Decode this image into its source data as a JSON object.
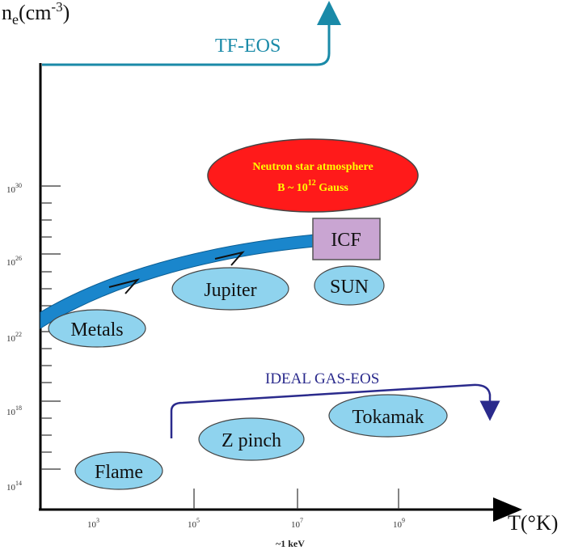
{
  "axes": {
    "y_label": {
      "base": "n",
      "sub": "e",
      "unit": "(cm",
      "exp": "-3",
      "close": ")"
    },
    "x_label": "T(°K)",
    "y_ticks": [
      {
        "base": "10",
        "exp": "30"
      },
      {
        "base": "10",
        "exp": "26"
      },
      {
        "base": "10",
        "exp": "22"
      },
      {
        "base": "10",
        "exp": "18"
      },
      {
        "base": "10",
        "exp": "14"
      }
    ],
    "x_ticks": [
      {
        "base": "10",
        "exp": "3"
      },
      {
        "base": "10",
        "exp": "5"
      },
      {
        "base": "10",
        "exp": "7"
      },
      {
        "base": "10",
        "exp": "9"
      }
    ],
    "x_note": "~1 keV"
  },
  "regions": {
    "tf_eos": "TF-EOS",
    "neutron_star_line1": "Neutron star atmosphere",
    "neutron_star_line2": {
      "pre": "B ~ 10",
      "exp": "12",
      "post": " Gauss"
    },
    "icf": "ICF",
    "sun": "SUN",
    "jupiter": "Jupiter",
    "metals": "Metals",
    "ideal_gas_eos": "IDEAL GAS-EOS",
    "tokamak": "Tokamak",
    "z_pinch": "Z pinch",
    "flame": "Flame"
  },
  "colors": {
    "tf_eos": "#1a8aa8",
    "ellipse_fill": "#8fd3ee",
    "neutron_star_fill": "#ff1a1a",
    "neutron_star_text": "#ffff00",
    "icf_fill": "#c9a5d2",
    "band": "#1a86cc",
    "ideal_gas": "#2a2a8c",
    "axis": "#000000"
  }
}
